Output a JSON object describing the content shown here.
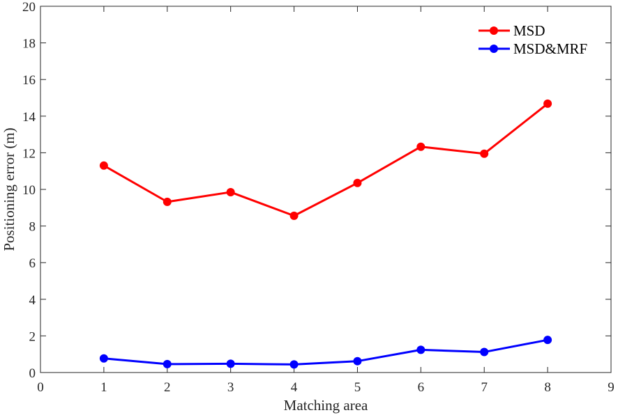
{
  "chart_data": {
    "type": "line",
    "title": "",
    "xlabel": "Matching area",
    "ylabel": "Positioning error (m)",
    "xlim": [
      0,
      9
    ],
    "ylim": [
      0,
      20
    ],
    "xticks": [
      0,
      1,
      2,
      3,
      4,
      5,
      6,
      7,
      8,
      9
    ],
    "yticks": [
      0,
      2,
      4,
      6,
      8,
      10,
      12,
      14,
      16,
      18,
      20
    ],
    "grid": false,
    "legend_position": "upper right",
    "x": [
      1,
      2,
      3,
      4,
      5,
      6,
      7,
      8
    ],
    "series": [
      {
        "name": "MSD",
        "color": "#ff0000",
        "marker": "circle",
        "values": [
          11.3,
          9.32,
          9.85,
          8.56,
          10.35,
          12.33,
          11.95,
          14.68
        ]
      },
      {
        "name": "MSD&MRF",
        "color": "#0000ff",
        "marker": "circle",
        "values": [
          0.77,
          0.46,
          0.48,
          0.44,
          0.62,
          1.24,
          1.12,
          1.78
        ]
      }
    ]
  }
}
